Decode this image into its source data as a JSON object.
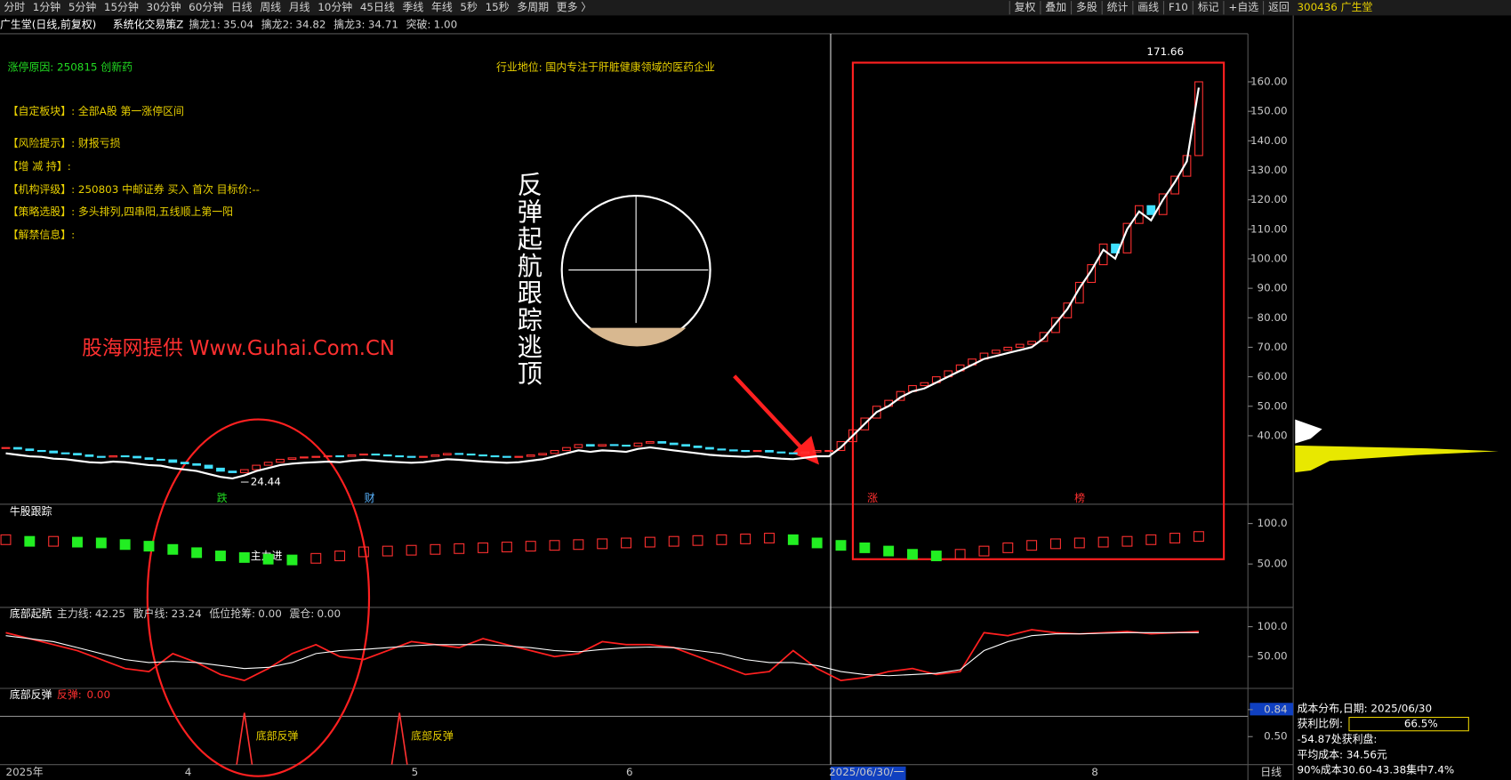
{
  "toolbar": {
    "periods": [
      "分时",
      "1分钟",
      "5分钟",
      "15分钟",
      "30分钟",
      "60分钟",
      "日线",
      "周线",
      "月线",
      "10分钟",
      "45日线",
      "季线",
      "年线",
      "5秒",
      "15秒",
      "多周期",
      "更多 〉"
    ],
    "active": 6,
    "tools": [
      "复权",
      "叠加",
      "多股",
      "统计",
      "画线",
      "F10",
      "标记",
      "+自选",
      "返回"
    ],
    "stock": "300436 广生堂"
  },
  "info": {
    "reason": "涨停原因: 250815 创新药",
    "industry": "行业地位: 国内专注于肝脏健康领域的医药企业",
    "lines": [
      "【自定板块】:  全部A股 第一涨停区间",
      "【风险提示】:  财报亏损",
      "【增 减 持】:",
      "【机构评级】:  250803 中邮证券 买入 首次 目标价:--",
      "【策略选股】:  多头排列,四串阳,五线顺上第一阳",
      "【解禁信息】:"
    ],
    "watermark": "股海网提供 Www.Guhai.Com.CN",
    "slogan": "反弹起航跟踪逃顶",
    "marks": [
      "跌",
      "财",
      "涨",
      "榜"
    ]
  },
  "chart_data": [
    {
      "type": "candlestick",
      "title": "广生堂(日线,前复权)",
      "indicator": "系统化交易策Z",
      "legend": [
        {
          "name": "擒龙1:",
          "value": 35.04,
          "color": "#ff3030"
        },
        {
          "name": "擒龙2:",
          "value": 34.82,
          "color": "#22dd22"
        },
        {
          "name": "擒龙3:",
          "value": 34.71,
          "color": "#ffffff"
        },
        {
          "name": "突破:",
          "value": 1,
          "label": "1.00",
          "color": "#ff3030"
        }
      ],
      "closes": [
        36,
        35.5,
        35,
        34.8,
        34.2,
        34,
        33.5,
        33,
        32.8,
        33.2,
        33,
        32.5,
        32,
        31.8,
        31,
        30.5,
        30,
        29,
        28,
        27.5,
        28.5,
        30,
        31,
        32,
        32.5,
        32.8,
        33,
        33.2,
        33,
        33.5,
        33.8,
        33.5,
        33.2,
        33,
        32.8,
        33,
        33.5,
        34,
        33.8,
        33.5,
        33.2,
        33,
        32.8,
        33,
        33.5,
        34,
        35,
        36,
        37,
        36.5,
        37,
        36.8,
        36.5,
        37.5,
        38,
        37.5,
        37,
        36.5,
        36,
        35.5,
        35.2,
        35,
        34.8,
        35,
        34.5,
        34.2,
        34,
        34.5,
        35,
        35,
        38,
        42,
        46,
        50,
        52,
        55,
        57,
        58,
        60,
        62,
        64,
        66,
        68,
        69,
        70,
        71,
        72,
        75,
        80,
        85,
        92,
        98,
        105,
        102,
        112,
        118,
        115,
        122,
        128,
        135,
        160
      ],
      "dates": [
        "2025年",
        null,
        null,
        null,
        null,
        null,
        null,
        null,
        null,
        null,
        null,
        null,
        null,
        null,
        null,
        "4",
        null,
        null,
        null,
        null,
        null,
        null,
        null,
        null,
        null,
        null,
        null,
        null,
        null,
        null,
        null,
        null,
        null,
        null,
        "5",
        null,
        null,
        null,
        null,
        null,
        null,
        null,
        null,
        null,
        null,
        null,
        null,
        null,
        null,
        null,
        null,
        null,
        "6",
        null,
        null,
        null,
        null,
        null,
        null,
        null,
        null,
        null,
        null,
        null,
        null,
        null,
        null,
        null,
        null,
        "2025/06/30/一",
        null,
        null,
        null,
        null,
        null,
        null,
        null,
        null,
        null,
        null,
        null,
        null,
        null,
        null,
        null,
        null,
        null,
        null,
        null,
        null,
        null,
        "8",
        null,
        null,
        null,
        null,
        null,
        null,
        null,
        null,
        null
      ],
      "period": "日线",
      "high": 171.66,
      "low": 24.44,
      "ylim": [
        17.1,
        176.3
      ],
      "yticks": [
        {
          "value": 40,
          "label": "40.00"
        },
        {
          "value": 50,
          "label": "50.00"
        },
        {
          "value": 60,
          "label": "60.00"
        },
        {
          "value": 70,
          "label": "70.00"
        },
        {
          "value": 80,
          "label": "80.00"
        },
        {
          "value": 90,
          "label": "90.00"
        },
        {
          "value": 100,
          "label": "100.00"
        },
        {
          "value": 110,
          "label": "110.00"
        },
        {
          "value": 120,
          "label": "120.00"
        },
        {
          "value": 130,
          "label": "130.00"
        },
        {
          "value": 140,
          "label": "140.00"
        },
        {
          "value": 150,
          "label": "150.00"
        },
        {
          "value": 160,
          "label": "160.00"
        }
      ]
    },
    {
      "type": "bar",
      "title": "牛股跟踪",
      "annotation": "主力进",
      "values": [
        80,
        78,
        78,
        77,
        76,
        74,
        72,
        68,
        64,
        60,
        58,
        56,
        55,
        57,
        60,
        65,
        66,
        67,
        68,
        69,
        70,
        71,
        72,
        73,
        74,
        75,
        76,
        77,
        78,
        79,
        80,
        81,
        82,
        80,
        76,
        73,
        70,
        66,
        62,
        60,
        62,
        66,
        70,
        73,
        75,
        76,
        77,
        78,
        80,
        82,
        84
      ],
      "ylim": [
        -3.6,
        121.4
      ],
      "yticks": [
        {
          "value": 100,
          "label": "100.0"
        },
        {
          "value": 50,
          "label": "50.00"
        }
      ]
    },
    {
      "type": "line",
      "title": "底部起航",
      "series": [
        {
          "name": "主力线:",
          "value": 42.25,
          "color": "#ff2020",
          "values": [
            90,
            80,
            70,
            60,
            45,
            30,
            25,
            55,
            40,
            20,
            10,
            30,
            55,
            70,
            50,
            45,
            60,
            75,
            70,
            65,
            80,
            70,
            60,
            50,
            55,
            75,
            70,
            70,
            65,
            50,
            35,
            20,
            25,
            60,
            30,
            10,
            15,
            25,
            30,
            20,
            25,
            90,
            85,
            95,
            90,
            88,
            90,
            92,
            88,
            90,
            92
          ]
        },
        {
          "name": "散户线:",
          "value": 23.24,
          "color": "#ffffff",
          "values": [
            85,
            80,
            75,
            65,
            55,
            45,
            40,
            42,
            40,
            35,
            30,
            32,
            40,
            55,
            60,
            62,
            65,
            68,
            70,
            70,
            70,
            68,
            65,
            60,
            58,
            62,
            65,
            66,
            65,
            60,
            55,
            45,
            40,
            40,
            35,
            25,
            20,
            18,
            20,
            22,
            28,
            60,
            75,
            85,
            88,
            88,
            89,
            90,
            90,
            90,
            90
          ]
        }
      ],
      "extra": [
        {
          "name": "低位抢筹:",
          "value": 0,
          "label": "0.00",
          "color": "#ff3030"
        },
        {
          "name": "震仓:",
          "value": 0,
          "label": "0.00",
          "color": "#22dd22"
        }
      ],
      "ylim": [
        -3.2,
        129
      ],
      "yticks": [
        {
          "value": 100,
          "label": "100.0"
        },
        {
          "value": 50,
          "label": "50.00"
        }
      ]
    },
    {
      "type": "spike",
      "title": "底部反弹",
      "legend": {
        "name": "反弹:",
        "value": 0,
        "label": "0.00"
      },
      "signals": [
        {
          "index": 20,
          "value": 0.8,
          "label": "底部反弹"
        },
        {
          "index": 33,
          "value": 0.8,
          "label": "底部反弹"
        }
      ],
      "ylim": [
        0.148,
        1.083
      ],
      "yticks": [
        {
          "value": 0.84,
          "label": "0.84"
        },
        {
          "value": 0.5,
          "label": "0.50"
        }
      ]
    }
  ],
  "cost": {
    "title": "成本分布,日期: 2025/06/30",
    "ratio_name": "获利比例:",
    "ratio": 66.5,
    "ratio_label": "66.5%",
    "profit": "-54.87处获利盘:",
    "avg": "平均成本: 34.56元",
    "band": "90%成本30.60-43.38集中7.4%"
  }
}
